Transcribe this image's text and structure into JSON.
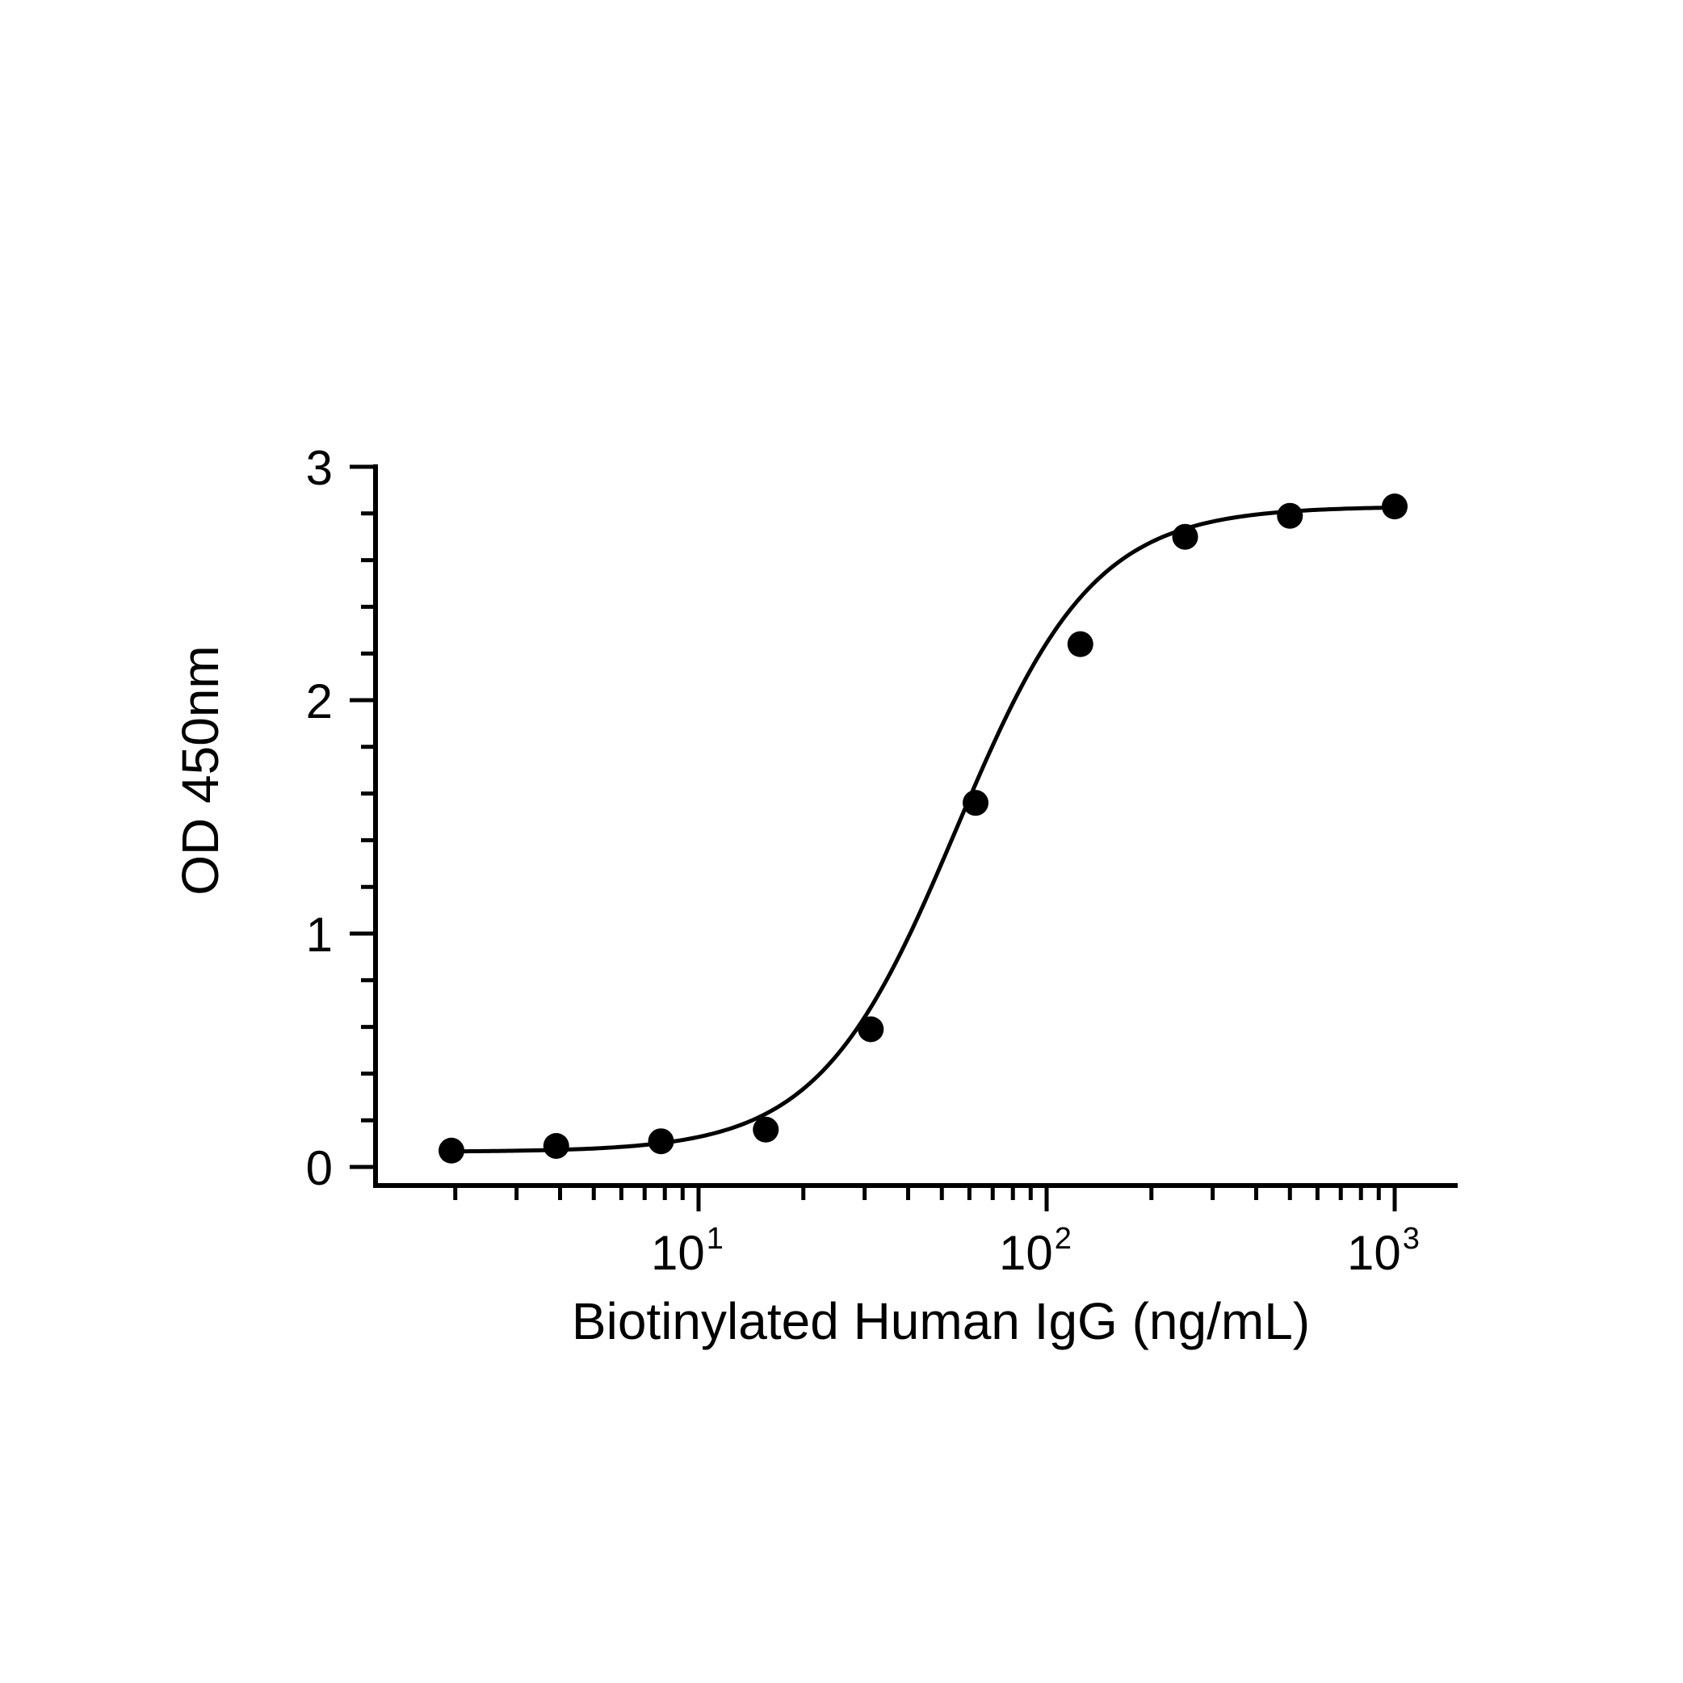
{
  "chart_data": {
    "type": "scatter",
    "title": "",
    "xlabel": "Biotinylated Human IgG (ng/mL)",
    "ylabel": "OD 450nm",
    "x_scale": "log",
    "xlim": [
      1.5,
      1600
    ],
    "ylim": [
      0,
      3
    ],
    "grid": false,
    "legend": "none",
    "y_ticks": [
      {
        "value": 0,
        "label": "0"
      },
      {
        "value": 1,
        "label": "1"
      },
      {
        "value": 2,
        "label": "2"
      },
      {
        "value": 3,
        "label": "3"
      }
    ],
    "x_ticks": [
      {
        "value": 10,
        "base": "10",
        "exp": "1"
      },
      {
        "value": 100,
        "base": "10",
        "exp": "2"
      },
      {
        "value": 1000,
        "base": "10",
        "exp": "3"
      }
    ],
    "series": [
      {
        "marker": "filled-circle",
        "x": [
          1.95,
          3.9,
          7.8,
          15.6,
          31.25,
          62.5,
          125,
          250,
          500,
          1000
        ],
        "y": [
          0.07,
          0.09,
          0.11,
          0.16,
          0.59,
          1.56,
          2.24,
          2.7,
          2.79,
          2.83
        ]
      }
    ],
    "fit_curve": {
      "model": "4PL",
      "bottom": 0.065,
      "top": 2.83,
      "ec50": 55,
      "hill": 2.2
    },
    "colors": {
      "line": "#000000",
      "marker": "#000000",
      "background": "#ffffff"
    }
  }
}
